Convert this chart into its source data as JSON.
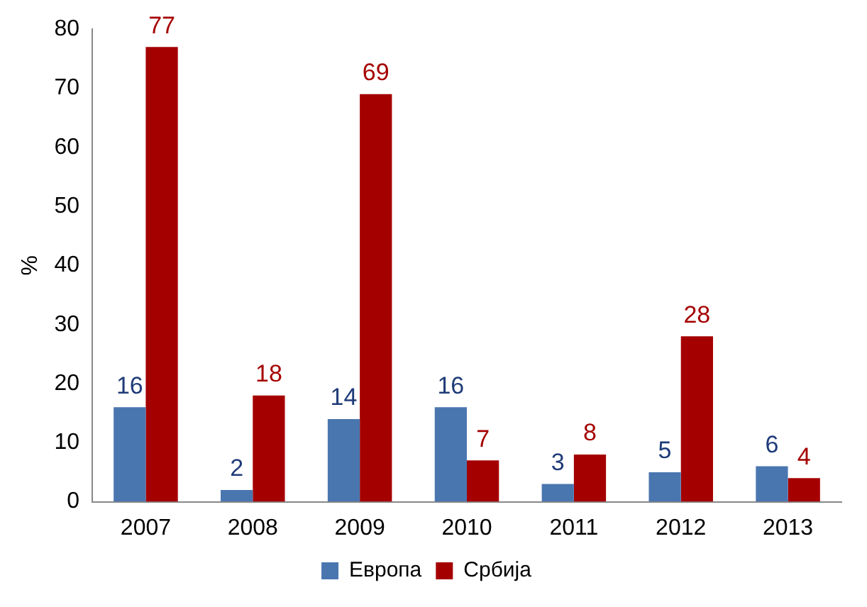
{
  "chart_data": {
    "type": "bar",
    "ylabel": "%",
    "categories": [
      "2007",
      "2008",
      "2009",
      "2010",
      "2011",
      "2012",
      "2013"
    ],
    "series": [
      {
        "name": "Европа",
        "color": "#4a76b0",
        "values": [
          16,
          2,
          14,
          16,
          3,
          5,
          6
        ]
      },
      {
        "name": "Србија",
        "color": "#a50000",
        "values": [
          77,
          18,
          69,
          7,
          8,
          28,
          4
        ]
      }
    ],
    "ylim": [
      0,
      80
    ],
    "yticks": [
      0,
      10,
      20,
      30,
      40,
      50,
      60,
      70,
      80
    ],
    "grid": false,
    "legend": "bottom",
    "data_labels": true
  }
}
